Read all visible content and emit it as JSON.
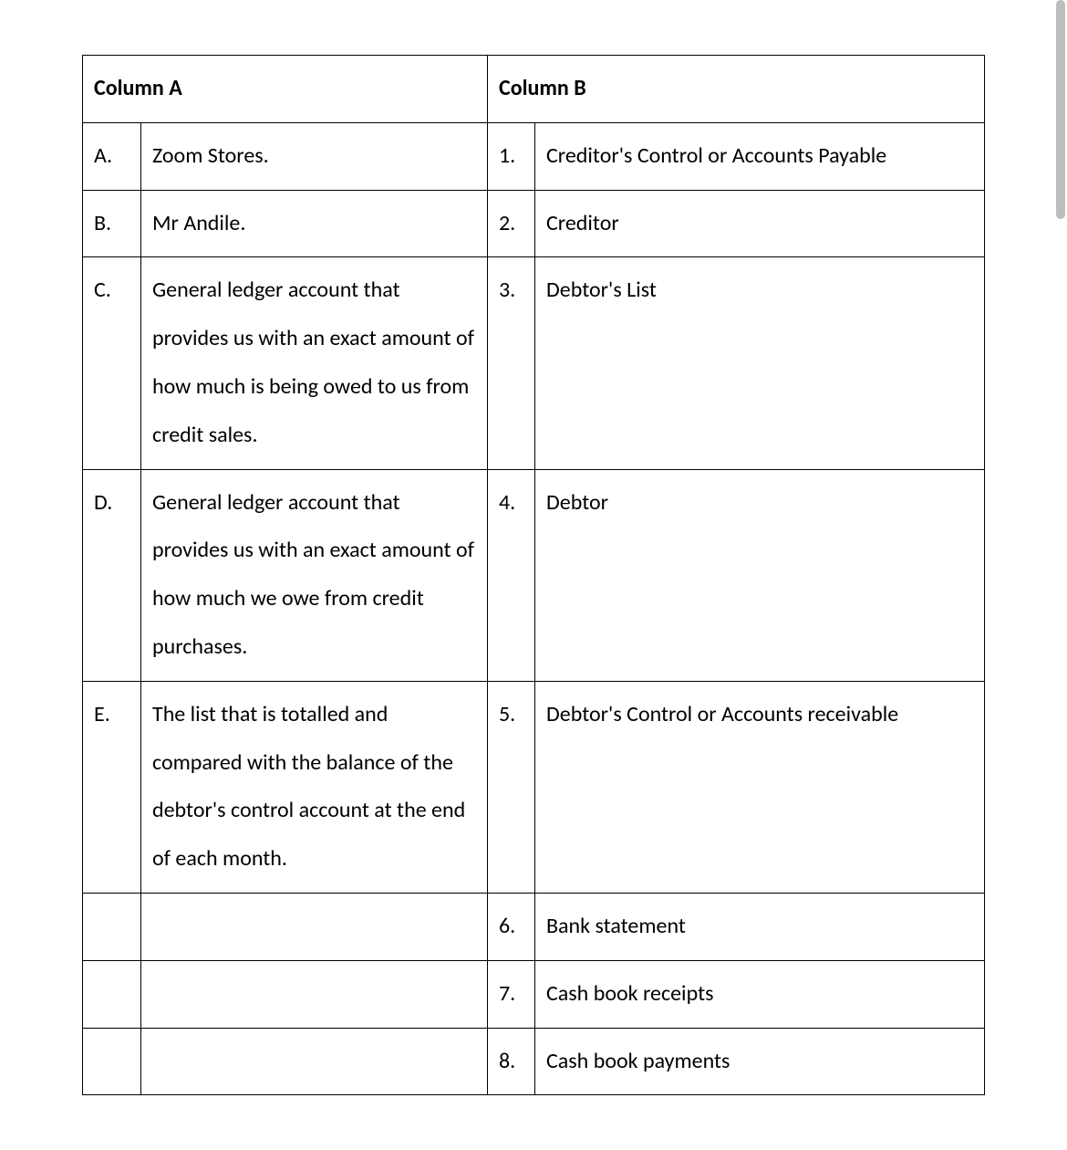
{
  "table": {
    "headers": {
      "colA": "Column A",
      "colB": "Column B"
    },
    "rows": [
      {
        "a_letter": "A.",
        "a_text": "Zoom Stores.",
        "b_num": "1.",
        "b_text": "Creditor's Control or Accounts Payable"
      },
      {
        "a_letter": "B.",
        "a_text": "Mr Andile.",
        "b_num": "2.",
        "b_text": "Creditor"
      },
      {
        "a_letter": "C.",
        "a_text": "General ledger account that provides us with an exact amount of how much is being owed to us from credit sales.",
        "b_num": "3.",
        "b_text": "Debtor's List"
      },
      {
        "a_letter": "D.",
        "a_text": "General ledger account that provides us with an exact amount of how much we owe from credit purchases.",
        "b_num": "4.",
        "b_text": "Debtor"
      },
      {
        "a_letter": "E.",
        "a_text": "The list that is totalled and compared with the balance of the debtor's control account at the end of each month.",
        "b_num": "5.",
        "b_text": "Debtor's Control or Accounts receivable"
      },
      {
        "a_letter": "",
        "a_text": "",
        "b_num": "6.",
        "b_text": "Bank statement"
      },
      {
        "a_letter": "",
        "a_text": "",
        "b_num": "7.",
        "b_text": "Cash book receipts"
      },
      {
        "a_letter": "",
        "a_text": "",
        "b_num": "8.",
        "b_text": "Cash book payments"
      }
    ]
  }
}
